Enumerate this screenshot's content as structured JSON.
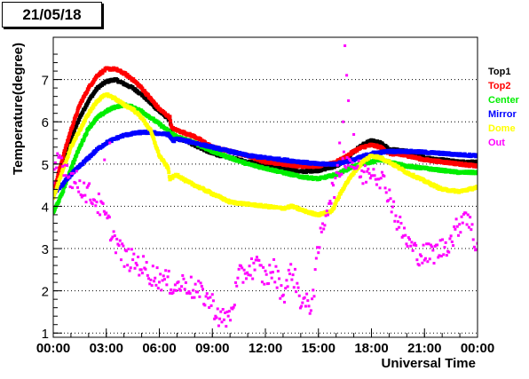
{
  "chart_data": {
    "type": "scatter",
    "title": "21/05/18",
    "xlabel": "Universal Time",
    "ylabel": "Temperature(degree)",
    "xlim": [
      0,
      24
    ],
    "ylim": [
      0.9,
      8.0
    ],
    "x_tick_values": [
      0,
      3,
      6,
      9,
      12,
      15,
      18,
      21,
      24
    ],
    "x_tick_labels": [
      "00:00",
      "03:00",
      "06:00",
      "09:00",
      "12:00",
      "15:00",
      "18:00",
      "21:00",
      "00:00"
    ],
    "y_tick_values": [
      1,
      2,
      3,
      4,
      5,
      6,
      7
    ],
    "y_tick_labels": [
      "1",
      "2",
      "3",
      "4",
      "5",
      "6",
      "7"
    ],
    "grid": "horizontal dotted",
    "legend_position": "right",
    "series": [
      {
        "name": "Top1",
        "color": "#000000",
        "points": [
          [
            0,
            4.3
          ],
          [
            0.5,
            4.9
          ],
          [
            1,
            5.6
          ],
          [
            1.5,
            6.1
          ],
          [
            2,
            6.5
          ],
          [
            2.5,
            6.8
          ],
          [
            3,
            6.95
          ],
          [
            3.5,
            7.0
          ],
          [
            4,
            6.9
          ],
          [
            4.5,
            6.8
          ],
          [
            5,
            6.65
          ],
          [
            5.5,
            6.45
          ],
          [
            6,
            6.25
          ],
          [
            6.6,
            6.05
          ],
          [
            6.7,
            5.65
          ],
          [
            7.5,
            5.55
          ],
          [
            8,
            5.45
          ],
          [
            9,
            5.25
          ],
          [
            10,
            5.15
          ],
          [
            11,
            5.05
          ],
          [
            12,
            5.0
          ],
          [
            13,
            4.9
          ],
          [
            14,
            4.82
          ],
          [
            15,
            4.85
          ],
          [
            16,
            4.95
          ],
          [
            16.5,
            5.1
          ],
          [
            17,
            5.3
          ],
          [
            17.5,
            5.45
          ],
          [
            18,
            5.55
          ],
          [
            18.5,
            5.5
          ],
          [
            19,
            5.35
          ],
          [
            20,
            5.3
          ],
          [
            21,
            5.15
          ],
          [
            22,
            5.1
          ],
          [
            23,
            5.05
          ],
          [
            24,
            5.05
          ]
        ]
      },
      {
        "name": "Top2",
        "color": "#ff0000",
        "points": [
          [
            0,
            4.3
          ],
          [
            0.5,
            5.1
          ],
          [
            1,
            5.8
          ],
          [
            1.5,
            6.4
          ],
          [
            2,
            6.8
          ],
          [
            2.5,
            7.1
          ],
          [
            3,
            7.25
          ],
          [
            3.5,
            7.25
          ],
          [
            4,
            7.15
          ],
          [
            4.5,
            7.0
          ],
          [
            5,
            6.8
          ],
          [
            5.5,
            6.55
          ],
          [
            6,
            6.3
          ],
          [
            6.6,
            6.1
          ],
          [
            6.7,
            5.85
          ],
          [
            7,
            5.8
          ],
          [
            8,
            5.65
          ],
          [
            9,
            5.4
          ],
          [
            10,
            5.3
          ],
          [
            11,
            5.2
          ],
          [
            12,
            5.05
          ],
          [
            13,
            5.0
          ],
          [
            14,
            4.95
          ],
          [
            15,
            4.95
          ],
          [
            16,
            5.05
          ],
          [
            16.5,
            5.15
          ],
          [
            17,
            5.3
          ],
          [
            17.5,
            5.4
          ],
          [
            18,
            5.45
          ],
          [
            18.5,
            5.4
          ],
          [
            19,
            5.25
          ],
          [
            20,
            5.2
          ],
          [
            21,
            5.1
          ],
          [
            22,
            5.05
          ],
          [
            23,
            5.0
          ],
          [
            24,
            4.95
          ]
        ]
      },
      {
        "name": "Center",
        "color": "#00ee00",
        "points": [
          [
            0,
            3.85
          ],
          [
            0.5,
            4.3
          ],
          [
            1,
            4.9
          ],
          [
            1.5,
            5.4
          ],
          [
            2,
            5.85
          ],
          [
            2.5,
            6.1
          ],
          [
            3,
            6.25
          ],
          [
            3.5,
            6.35
          ],
          [
            4,
            6.4
          ],
          [
            4.5,
            6.35
          ],
          [
            5,
            6.25
          ],
          [
            5.5,
            6.1
          ],
          [
            6,
            5.95
          ],
          [
            6.6,
            5.75
          ],
          [
            7,
            5.65
          ],
          [
            8,
            5.5
          ],
          [
            9,
            5.3
          ],
          [
            10,
            5.15
          ],
          [
            11,
            5.0
          ],
          [
            12,
            4.9
          ],
          [
            13,
            4.8
          ],
          [
            14,
            4.7
          ],
          [
            15,
            4.65
          ],
          [
            16,
            4.75
          ],
          [
            16.5,
            4.85
          ],
          [
            17,
            4.95
          ],
          [
            17.5,
            5.0
          ],
          [
            18,
            5.05
          ],
          [
            18.5,
            5.1
          ],
          [
            19,
            5.05
          ],
          [
            20,
            4.95
          ],
          [
            21,
            4.9
          ],
          [
            22,
            4.85
          ],
          [
            23,
            4.8
          ],
          [
            24,
            4.8
          ]
        ]
      },
      {
        "name": "Mirror",
        "color": "#0000ff",
        "points": [
          [
            0,
            4.3
          ],
          [
            0.5,
            4.5
          ],
          [
            1,
            4.75
          ],
          [
            1.5,
            4.95
          ],
          [
            2,
            5.15
          ],
          [
            2.5,
            5.35
          ],
          [
            3,
            5.5
          ],
          [
            3.5,
            5.6
          ],
          [
            4,
            5.68
          ],
          [
            4.5,
            5.72
          ],
          [
            5,
            5.75
          ],
          [
            5.5,
            5.75
          ],
          [
            6,
            5.72
          ],
          [
            6.5,
            5.7
          ],
          [
            6.8,
            5.55
          ],
          [
            7,
            5.6
          ],
          [
            8,
            5.5
          ],
          [
            9,
            5.4
          ],
          [
            10,
            5.3
          ],
          [
            11,
            5.2
          ],
          [
            12,
            5.15
          ],
          [
            13,
            5.1
          ],
          [
            14,
            5.05
          ],
          [
            15,
            5.0
          ],
          [
            16,
            5.0
          ],
          [
            16.5,
            5.05
          ],
          [
            17,
            5.1
          ],
          [
            17.5,
            5.18
          ],
          [
            18,
            5.25
          ],
          [
            19,
            5.3
          ],
          [
            20,
            5.3
          ],
          [
            21,
            5.28
          ],
          [
            22,
            5.25
          ],
          [
            23,
            5.22
          ],
          [
            24,
            5.2
          ]
        ]
      },
      {
        "name": "Dome",
        "color": "#ffff00",
        "points": [
          [
            0,
            4.2
          ],
          [
            0.5,
            4.8
          ],
          [
            1,
            5.4
          ],
          [
            1.5,
            5.8
          ],
          [
            2,
            6.2
          ],
          [
            2.5,
            6.5
          ],
          [
            3,
            6.65
          ],
          [
            3.5,
            6.55
          ],
          [
            4,
            6.4
          ],
          [
            4.5,
            6.3
          ],
          [
            5,
            6.1
          ],
          [
            5.5,
            5.8
          ],
          [
            6,
            5.2
          ],
          [
            6.5,
            4.9
          ],
          [
            6.6,
            4.65
          ],
          [
            7,
            4.75
          ],
          [
            7.5,
            4.6
          ],
          [
            8,
            4.5
          ],
          [
            9,
            4.3
          ],
          [
            9.5,
            4.2
          ],
          [
            10,
            4.1
          ],
          [
            11,
            4.05
          ],
          [
            12,
            4.0
          ],
          [
            13,
            3.95
          ],
          [
            13.5,
            4.0
          ],
          [
            14,
            3.92
          ],
          [
            14.5,
            3.85
          ],
          [
            15,
            3.8
          ],
          [
            15.5,
            3.85
          ],
          [
            15.8,
            3.9
          ],
          [
            16,
            4.1
          ],
          [
            16.5,
            4.5
          ],
          [
            17,
            4.8
          ],
          [
            17.5,
            5.05
          ],
          [
            18,
            5.2
          ],
          [
            18.5,
            5.15
          ],
          [
            19,
            5.05
          ],
          [
            20,
            4.8
          ],
          [
            21,
            4.6
          ],
          [
            22,
            4.4
          ],
          [
            23,
            4.35
          ],
          [
            24,
            4.45
          ]
        ]
      },
      {
        "name": "Out",
        "color": "#ff00ff",
        "points": [
          [
            0,
            4.5
          ],
          [
            0.3,
            5.2
          ],
          [
            0.6,
            5.0
          ],
          [
            1,
            4.7
          ],
          [
            1.5,
            4.5
          ],
          [
            2,
            4.3
          ],
          [
            2.5,
            4.1
          ],
          [
            3,
            3.7
          ],
          [
            3.5,
            3.2
          ],
          [
            4,
            2.8
          ],
          [
            4.5,
            2.7
          ],
          [
            5,
            2.6
          ],
          [
            5.5,
            2.4
          ],
          [
            6,
            2.3
          ],
          [
            6.5,
            2.2
          ],
          [
            7,
            2.1
          ],
          [
            7.5,
            2.2
          ],
          [
            8,
            2.0
          ],
          [
            8.5,
            1.9
          ],
          [
            9,
            1.7
          ],
          [
            9.5,
            1.3
          ],
          [
            10,
            1.4
          ],
          [
            10.5,
            2.3
          ],
          [
            11,
            2.5
          ],
          [
            11.5,
            2.6
          ],
          [
            12,
            2.3
          ],
          [
            12.5,
            2.5
          ],
          [
            13,
            1.9
          ],
          [
            13.5,
            2.5
          ],
          [
            14,
            1.8
          ],
          [
            14.5,
            1.6
          ],
          [
            14.8,
            2.2
          ],
          [
            15,
            3.0
          ],
          [
            15.5,
            4.0
          ],
          [
            16,
            4.6
          ],
          [
            16.5,
            5.2
          ],
          [
            17,
            5.0
          ],
          [
            17.5,
            4.7
          ],
          [
            18,
            4.9
          ],
          [
            18.5,
            4.7
          ],
          [
            19,
            4.3
          ],
          [
            19.5,
            3.6
          ],
          [
            20,
            3.2
          ],
          [
            20.5,
            2.9
          ],
          [
            21,
            2.85
          ],
          [
            21.5,
            2.9
          ],
          [
            22,
            3.0
          ],
          [
            22.5,
            3.2
          ],
          [
            23,
            3.6
          ],
          [
            23.3,
            3.9
          ],
          [
            23.5,
            3.7
          ],
          [
            23.8,
            3.2
          ],
          [
            24,
            3.05
          ]
        ]
      }
    ],
    "outliers": [
      {
        "series": "Out",
        "points": [
          [
            16.5,
            7.8
          ],
          [
            16.6,
            7.1
          ],
          [
            16.7,
            6.5
          ],
          [
            16.4,
            6.0
          ],
          [
            17.0,
            5.7
          ],
          [
            16.2,
            5.5
          ],
          [
            3.2,
            5.5
          ],
          [
            2.9,
            5.1
          ]
        ]
      }
    ]
  }
}
